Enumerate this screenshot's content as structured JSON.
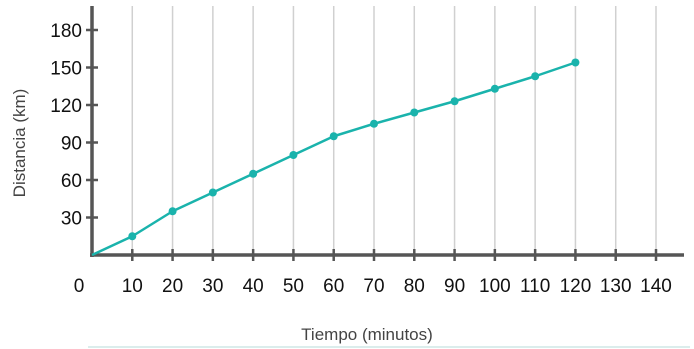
{
  "chart_data": {
    "type": "line",
    "title": "",
    "xlabel": "Tiempo (minutos)",
    "ylabel": "Distancia (km)",
    "x_ticks": [
      0,
      10,
      20,
      30,
      40,
      50,
      60,
      70,
      80,
      90,
      100,
      110,
      120,
      130,
      140
    ],
    "y_ticks": [
      30,
      60,
      90,
      120,
      150,
      180
    ],
    "xlim": [
      0,
      140
    ],
    "ylim": [
      0,
      180
    ],
    "grid": "vertical",
    "series": [
      {
        "x": [
          0,
          10,
          20,
          30,
          40,
          50,
          60,
          70,
          80,
          90,
          100,
          110,
          120
        ],
        "y": [
          0,
          15,
          35,
          50,
          65,
          80,
          95,
          105,
          114,
          123,
          133,
          143,
          154
        ],
        "color": "#1ab3ac"
      }
    ]
  },
  "colors": {
    "line": "#1ab3ac",
    "axis": "#555555",
    "grid": "#d0d0d0"
  }
}
